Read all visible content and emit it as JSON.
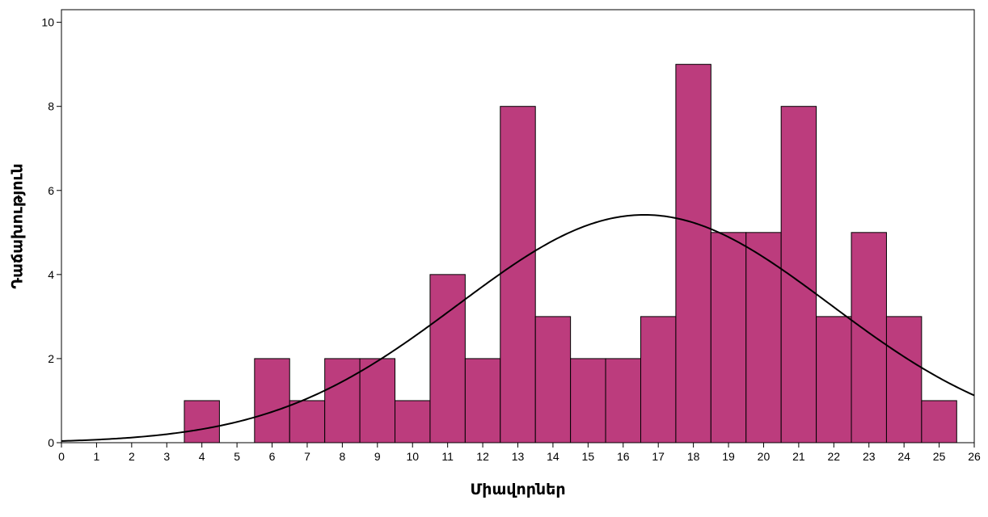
{
  "chart_data": {
    "type": "bar",
    "subtype": "histogram",
    "title": "",
    "xlabel": "Միավորներ",
    "ylabel": "Դաճախություն",
    "x": [
      4,
      6,
      7,
      8,
      9,
      10,
      11,
      12,
      13,
      14,
      15,
      16,
      17,
      18,
      19,
      20,
      21,
      22,
      23,
      24,
      25
    ],
    "values": [
      1,
      2,
      1,
      2,
      2,
      1,
      4,
      2,
      8,
      3,
      2,
      2,
      3,
      9,
      5,
      5,
      8,
      3,
      5,
      3,
      1
    ],
    "bin_width": 1,
    "xlim": [
      0,
      26
    ],
    "ylim": [
      0,
      10.3
    ],
    "x_ticks": [
      0,
      1,
      2,
      3,
      4,
      5,
      6,
      7,
      8,
      9,
      10,
      11,
      12,
      13,
      14,
      15,
      16,
      17,
      18,
      19,
      20,
      21,
      22,
      23,
      24,
      25,
      26
    ],
    "y_ticks": [
      0,
      2,
      4,
      6,
      8,
      10
    ],
    "normal_curve": {
      "mean": 16.6,
      "sd": 5.3,
      "n": 72
    },
    "grid": false,
    "legend": "none",
    "colors": {
      "bar_fill": "#BC3C7D",
      "bar_stroke": "#000000",
      "curve": "#000000",
      "background": "#ffffff"
    }
  }
}
